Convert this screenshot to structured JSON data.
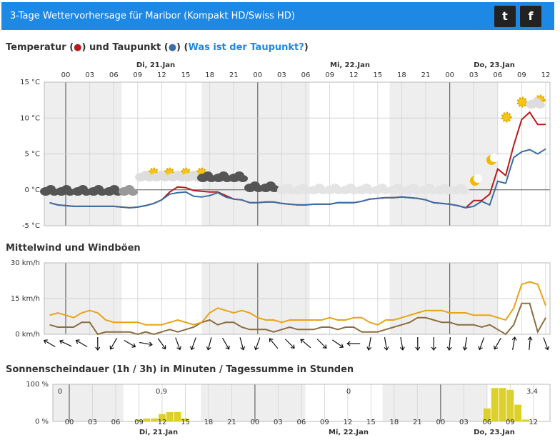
{
  "header": {
    "title": "3-Tage Wettervorhersage für Maribor  (Kompakt HD/Swiss HD)"
  },
  "chart_data": [
    {
      "type": "line",
      "title_parts": [
        "Temperatur (",
        "●",
        ") und Taupunkt (",
        "●",
        ") (",
        "Was ist der Taupunkt?",
        ")"
      ],
      "day_labels": [
        "Di, 21.Jan",
        "Mi, 22.Jan",
        "Do, 23.Jan"
      ],
      "categories": [
        null,
        null,
        "00",
        null,
        null,
        "03",
        null,
        null,
        "06",
        null,
        null,
        "09",
        null,
        null,
        "12",
        null,
        null,
        "15",
        null,
        null,
        "18",
        null,
        null,
        "21",
        null,
        null,
        "00",
        null,
        null,
        "03",
        null,
        null,
        "06",
        null,
        null,
        "09",
        null,
        null,
        "12",
        null,
        null,
        "15",
        null,
        null,
        "18",
        null,
        null,
        "21",
        null,
        null,
        "00",
        null,
        null,
        "03",
        null,
        null,
        "06",
        null,
        null,
        "09",
        null,
        null,
        "12"
      ],
      "series": [
        {
          "color": "#b71c1c",
          "values": [
            -1.8,
            -2.1,
            -2.2,
            -2.3,
            -2.3,
            -2.3,
            -2.3,
            -2.3,
            -2.3,
            -2.4,
            -2.5,
            -2.4,
            -2.2,
            -1.9,
            -1.4,
            -0.3,
            0.4,
            0.3,
            -0.1,
            -0.2,
            -0.3,
            -0.3,
            -0.8,
            -1.3,
            -1.4,
            -1.8,
            -1.8,
            -1.7,
            -1.7,
            -1.9,
            -2.0,
            -2.1,
            -2.1,
            -2.0,
            -2.0,
            -2.0,
            -1.8,
            -1.8,
            -1.8,
            -1.6,
            -1.3,
            -1.2,
            -1.1,
            -1.1,
            -1.0,
            -1.1,
            -1.2,
            -1.4,
            -1.8,
            -1.9,
            -2.0,
            -2.2,
            -2.5,
            -1.5,
            -1.5,
            -0.6,
            2.9,
            2.0,
            6.2,
            9.8,
            10.8,
            9.1,
            9.1
          ]
        },
        {
          "color": "#3a6ea5",
          "values": [
            -1.8,
            -2.1,
            -2.2,
            -2.3,
            -2.3,
            -2.3,
            -2.3,
            -2.3,
            -2.3,
            -2.4,
            -2.5,
            -2.4,
            -2.2,
            -1.9,
            -1.4,
            -0.6,
            -0.4,
            -0.3,
            -0.9,
            -1.0,
            -0.8,
            -0.4,
            -1.0,
            -1.3,
            -1.4,
            -1.8,
            -1.8,
            -1.7,
            -1.7,
            -1.9,
            -2.0,
            -2.1,
            -2.1,
            -2.0,
            -2.0,
            -2.0,
            -1.8,
            -1.8,
            -1.8,
            -1.6,
            -1.3,
            -1.2,
            -1.1,
            -1.1,
            -1.0,
            -1.1,
            -1.2,
            -1.4,
            -1.8,
            -1.9,
            -2.0,
            -2.2,
            -2.5,
            -2.3,
            -1.6,
            -2.1,
            1.2,
            0.9,
            4.5,
            5.3,
            5.6,
            5.0,
            5.7
          ]
        }
      ],
      "ylim": [
        -5,
        15
      ],
      "yticks": [
        {
          "value": -5,
          "label": "-5 °C"
        },
        {
          "value": 0,
          "label": "0 °C"
        },
        {
          "value": 5,
          "label": "5 °C"
        },
        {
          "value": 10,
          "label": "10 °C"
        },
        {
          "value": 15,
          "label": "15 °C"
        }
      ],
      "grid": true
    },
    {
      "type": "line",
      "title": "Mittelwind und Windböen",
      "series": [
        {
          "color": "#e8a317",
          "values": [
            8,
            9,
            8,
            7,
            9,
            10,
            9,
            6,
            5,
            5,
            5,
            5,
            4,
            4,
            4,
            5,
            6,
            5,
            4,
            5,
            9,
            11,
            10,
            9,
            10,
            9,
            7,
            6,
            6,
            5,
            6,
            6,
            6,
            6,
            6,
            7,
            6,
            6,
            7,
            7,
            5,
            4,
            6,
            6,
            7,
            8,
            9,
            10,
            10,
            10,
            9,
            9,
            9,
            8,
            8,
            8,
            7,
            6,
            11,
            21,
            22,
            21,
            12
          ]
        },
        {
          "color": "#8b6d3f",
          "values": [
            4,
            3,
            3,
            3,
            5,
            5,
            0,
            1,
            1,
            1,
            1,
            0,
            1,
            0,
            1,
            2,
            1,
            2,
            3,
            5,
            6,
            4,
            5,
            5,
            3,
            2,
            2,
            2,
            1,
            2,
            3,
            2,
            2,
            2,
            3,
            3,
            2,
            3,
            3,
            1,
            1,
            1,
            2,
            3,
            4,
            5,
            7,
            7,
            6,
            5,
            5,
            4,
            4,
            4,
            3,
            4,
            2,
            0,
            4,
            13,
            13,
            1,
            7
          ]
        }
      ],
      "wind_direction": [
        300,
        295,
        300,
        180,
        210,
        120,
        100,
        145,
        160,
        200,
        195,
        150,
        165,
        200,
        320,
        135,
        310,
        135,
        125,
        270,
        190,
        170,
        170,
        180,
        180,
        185,
        190,
        200,
        210,
        10,
        5,
        160
      ],
      "ylim": [
        0,
        30
      ],
      "yticks": [
        {
          "value": 0,
          "label": "0 km/h"
        },
        {
          "value": 15,
          "label": "15 km/h"
        },
        {
          "value": 30,
          "label": "30 km/h"
        }
      ],
      "grid": true
    },
    {
      "type": "bar",
      "title": "Sonnenscheindauer (1h / 3h) in Minuten / Tagessumme in Stunden",
      "day_labels": [
        "Di, 21.Jan",
        "Mi, 22.Jan",
        "Do, 23.Jan"
      ],
      "categories": [
        null,
        null,
        "00",
        null,
        null,
        "03",
        null,
        null,
        "06",
        null,
        null,
        "09",
        null,
        null,
        "12",
        null,
        null,
        "15",
        null,
        null,
        "18",
        null,
        null,
        "21",
        null,
        null,
        "00",
        null,
        null,
        "03",
        null,
        null,
        "06",
        null,
        null,
        "09",
        null,
        null,
        "12",
        null,
        null,
        "15",
        null,
        null,
        "18",
        null,
        null,
        "21",
        null,
        null,
        "00",
        null,
        null,
        "03",
        null,
        null,
        "06",
        null,
        null,
        "09",
        null,
        null,
        "12"
      ],
      "color": "#ddd02a",
      "values": [
        0,
        0,
        0,
        0,
        0,
        0,
        0,
        0,
        0,
        0,
        0,
        5,
        8,
        8,
        20,
        25,
        25,
        8,
        0,
        0,
        0,
        0,
        0,
        0,
        0,
        0,
        0,
        0,
        0,
        0,
        0,
        0,
        0,
        0,
        0,
        0,
        0,
        0,
        0,
        0,
        0,
        0,
        0,
        0,
        0,
        0,
        0,
        0,
        0,
        0,
        0,
        0,
        0,
        0,
        0,
        0,
        35,
        90,
        90,
        85,
        45,
        5,
        0
      ],
      "daily_totals": {
        "values": [
          0,
          0.9,
          0,
          3.4
        ],
        "value_labels": [
          "0",
          "0,9",
          "0",
          "3,4"
        ]
      },
      "ylim": [
        0,
        100
      ],
      "yticks": [
        {
          "value": 0,
          "label": "0 %"
        },
        {
          "value": 100,
          "label": "100 %"
        }
      ]
    }
  ]
}
